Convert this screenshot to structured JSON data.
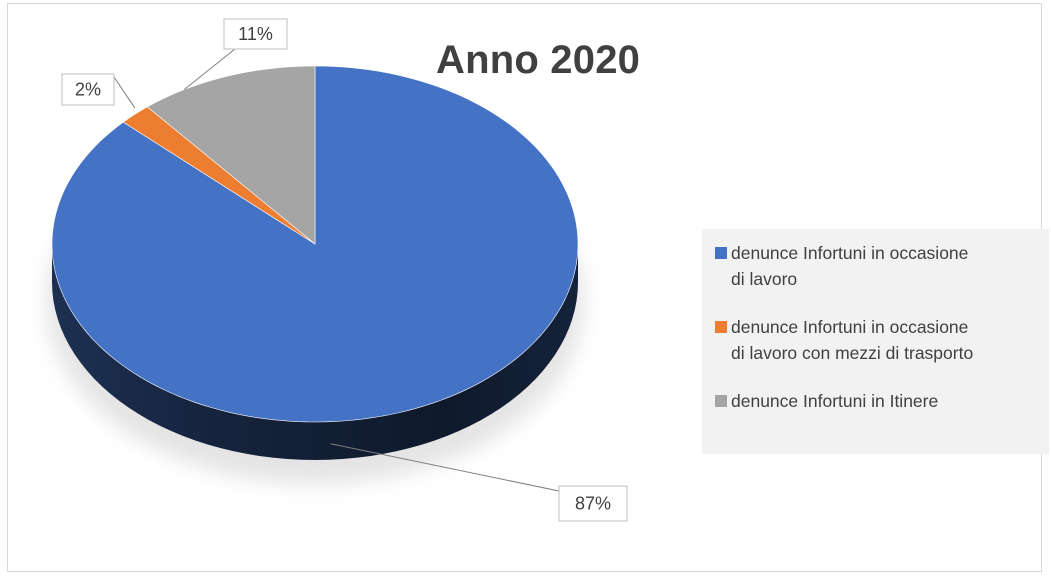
{
  "chart_data": {
    "type": "pie",
    "title": "Anno 2020",
    "style": "3d",
    "categories": [
      "denunce Infortuni in occasione di lavoro",
      "denunce Infortuni in occasione di lavoro con mezzi di trasporto",
      "denunce Infortuni in Itinere"
    ],
    "values": [
      87,
      2,
      11
    ],
    "data_labels": [
      "87%",
      "2%",
      "11%"
    ],
    "colors": [
      "#4472c4",
      "#ed7d31",
      "#a5a5a5"
    ],
    "legend_position": "right"
  },
  "legend": {
    "items": [
      {
        "label": "denunce Infortuni in occasione\ndi lavoro",
        "color": "#4472c4"
      },
      {
        "label": "denunce Infortuni in occasione\ndi lavoro con mezzi di trasporto",
        "color": "#ed7d31"
      },
      {
        "label": "denunce Infortuni in Itinere",
        "color": "#a5a5a5"
      }
    ]
  }
}
